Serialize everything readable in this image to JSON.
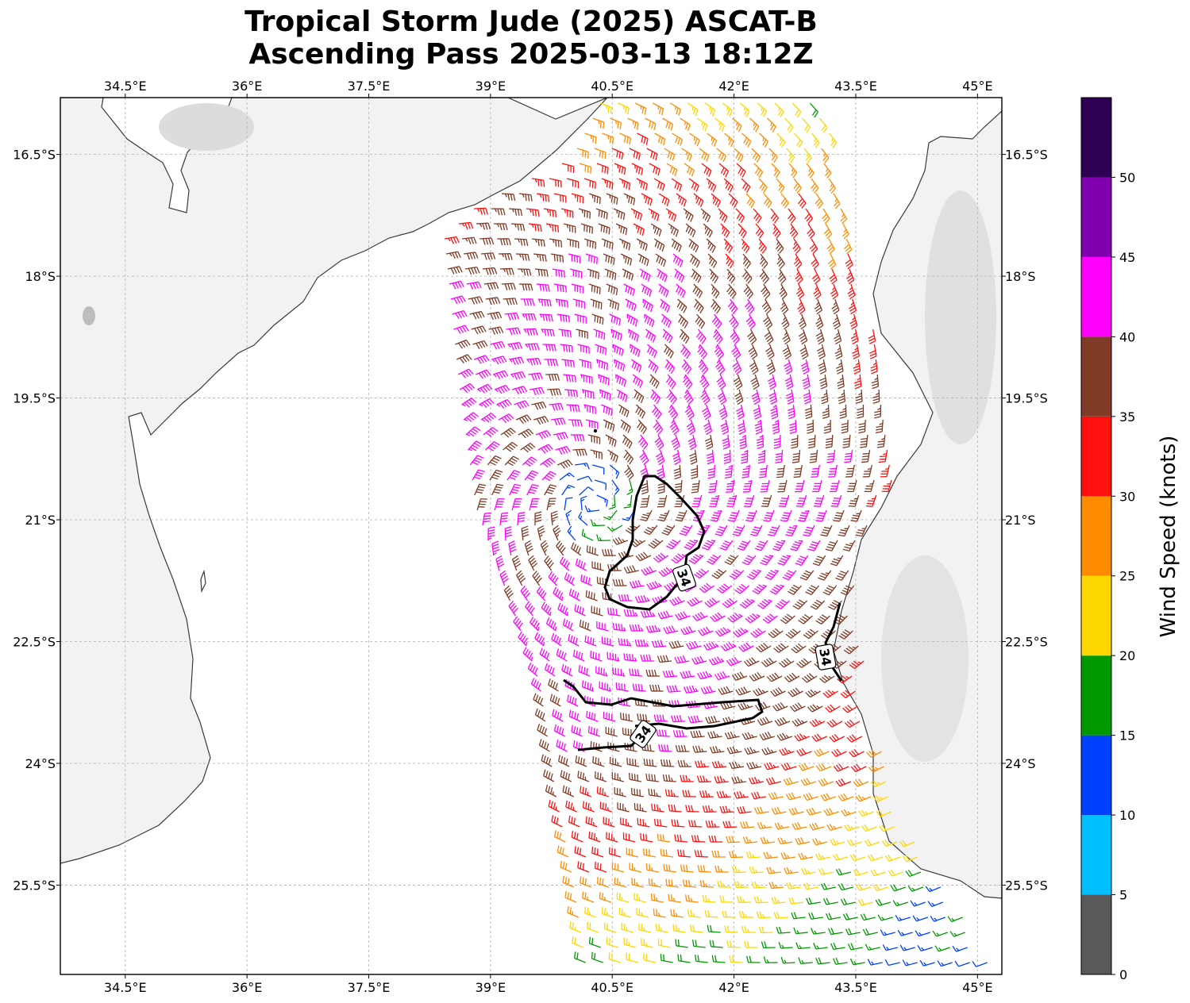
{
  "title": {
    "line1": "Tropical Storm Jude (2025) ASCAT-B",
    "line2": "Ascending Pass 2025-03-13 18:12Z"
  },
  "map": {
    "lon_range": [
      33.7,
      45.3
    ],
    "lat_range": [
      -26.6,
      -15.8
    ],
    "lon_ticks": [
      34.5,
      36,
      37.5,
      39,
      40.5,
      42,
      43.5,
      45
    ],
    "lon_tick_labels": [
      "34.5°E",
      "36°E",
      "37.5°E",
      "39°E",
      "40.5°E",
      "42°E",
      "43.5°E",
      "45°E"
    ],
    "lat_ticks": [
      -16.5,
      -18,
      -19.5,
      -21,
      -22.5,
      -24,
      -25.5
    ],
    "lat_tick_labels": [
      "16.5°S",
      "18°S",
      "19.5°S",
      "21°S",
      "22.5°S",
      "24°S",
      "25.5°S"
    ],
    "gridlines": true,
    "land_color": "#f2f2f2",
    "ocean_color": "#ffffff",
    "coastline_color": "#3a3a3a",
    "contour_label": "34",
    "contour_color": "#000000"
  },
  "colorbar": {
    "label": "Wind Speed (knots)",
    "bins": [
      {
        "from": 0,
        "to": 5,
        "color": "#595959"
      },
      {
        "from": 5,
        "to": 10,
        "color": "#00bfff"
      },
      {
        "from": 10,
        "to": 15,
        "color": "#0040ff"
      },
      {
        "from": 15,
        "to": 20,
        "color": "#009900"
      },
      {
        "from": 20,
        "to": 25,
        "color": "#ffd700"
      },
      {
        "from": 25,
        "to": 30,
        "color": "#ff8c00"
      },
      {
        "from": 30,
        "to": 35,
        "color": "#ff1010"
      },
      {
        "from": 35,
        "to": 40,
        "color": "#7f3b26"
      },
      {
        "from": 40,
        "to": 45,
        "color": "#ff00ff"
      },
      {
        "from": 45,
        "to": 50,
        "color": "#8000b0"
      },
      {
        "from": 50,
        "to": 55,
        "color": "#2e0054"
      }
    ],
    "tick_values": [
      0,
      5,
      10,
      15,
      20,
      25,
      30,
      35,
      40,
      45,
      50
    ],
    "tick_labels": [
      "0",
      "5",
      "10",
      "15",
      "20",
      "25",
      "30",
      "35",
      "40",
      "45",
      "50"
    ]
  },
  "storm": {
    "center_lon": 40.3,
    "center_lat": -20.8
  }
}
